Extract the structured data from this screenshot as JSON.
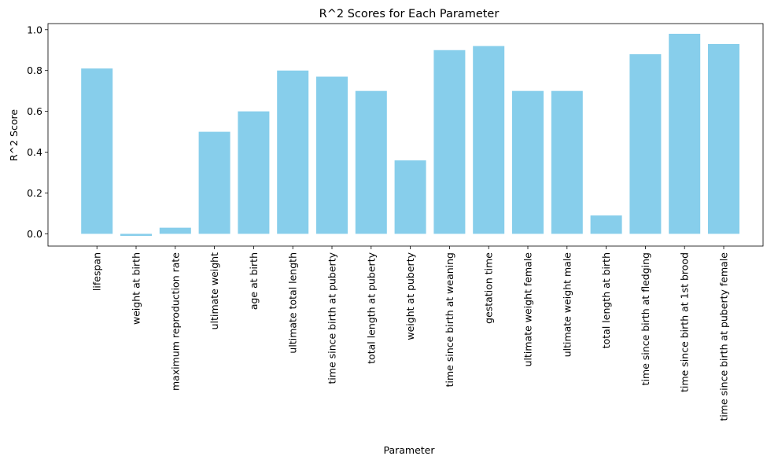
{
  "chart_data": {
    "type": "bar",
    "title": "R^2 Scores for Each Parameter",
    "xlabel": "Parameter",
    "ylabel": "R^2 Score",
    "categories": [
      "lifespan",
      "weight at birth",
      "maximum reproduction rate",
      "ultimate weight",
      "age at birth",
      "ultimate total length",
      "time since birth at puberty",
      "total length at puberty",
      "weight at puberty",
      "time since birth at weaning",
      "gestation time",
      "ultimate weight female",
      "ultimate weight male",
      "total length at birth",
      "time since birth at fledging",
      "time since birth at 1st brood",
      "time since birth at puberty female"
    ],
    "values": [
      0.81,
      -0.01,
      0.03,
      0.5,
      0.6,
      0.8,
      0.77,
      0.7,
      0.36,
      0.9,
      0.92,
      0.7,
      0.7,
      0.09,
      0.88,
      0.98,
      0.93
    ],
    "ylim": [
      -0.06,
      1.03
    ],
    "yticks": [
      "0.0",
      "0.2",
      "0.4",
      "0.6",
      "0.8",
      "1.0"
    ],
    "bar_color": "#87CEEB",
    "grid": false,
    "legend": "none"
  }
}
